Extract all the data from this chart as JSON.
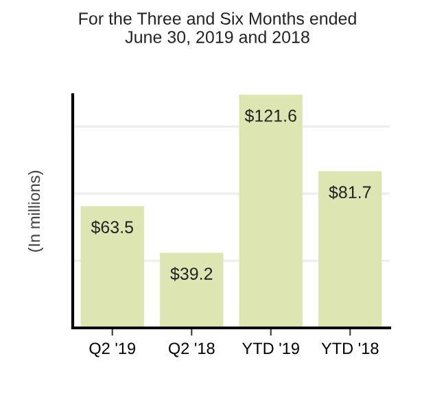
{
  "chart_data": {
    "type": "bar",
    "title": "For the Three and Six Months ended\nJune 30, 2019 and 2018",
    "ylabel": "(In millions)",
    "categories": [
      "Q2 '19",
      "Q2 '18",
      "YTD '19",
      "YTD '18"
    ],
    "values": [
      63.5,
      39.2,
      121.6,
      81.7
    ],
    "value_labels": [
      "$63.5",
      "$39.2",
      "$121.6",
      "$81.7"
    ],
    "color": "#dde5b2",
    "ylim": [
      0,
      121.6
    ],
    "yticks": [
      {
        "value": 35,
        "label": null
      },
      {
        "value": 70,
        "label": null
      },
      {
        "value": 105,
        "label": null
      }
    ],
    "grid": "y"
  }
}
